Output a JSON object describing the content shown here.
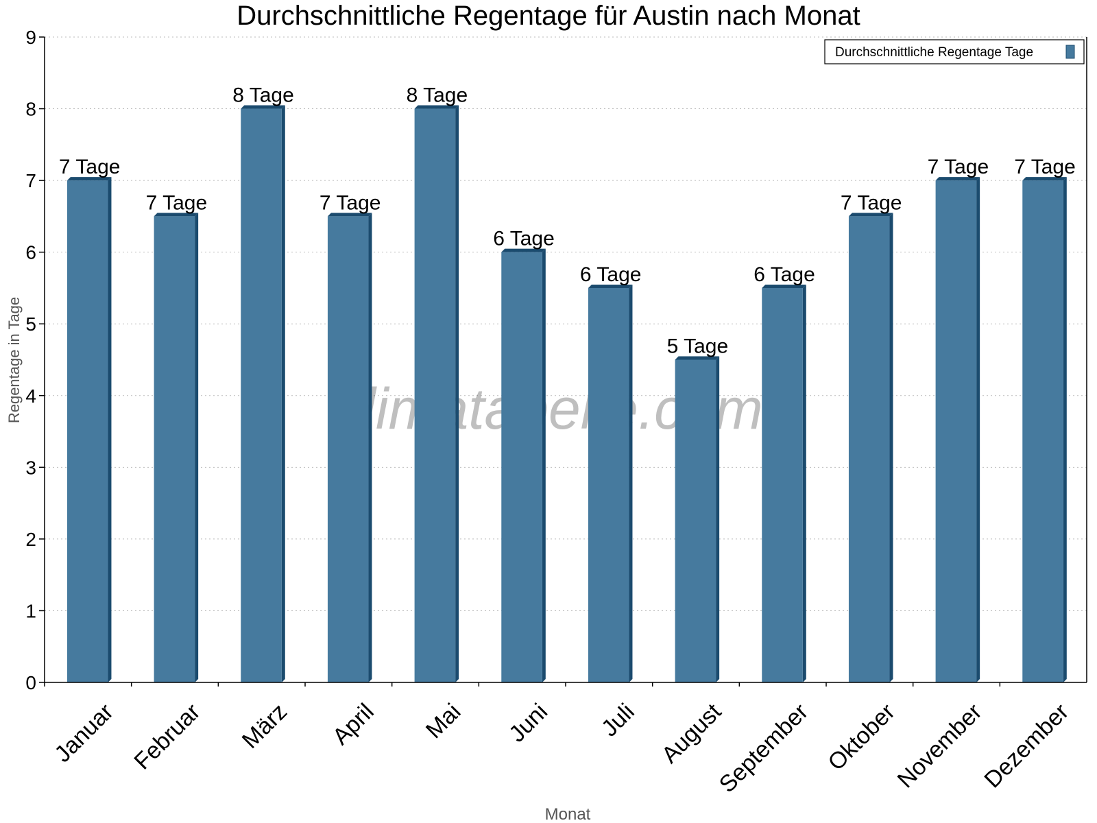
{
  "chart_data": {
    "type": "bar",
    "title": "Durchschnittliche Regentage für Austin nach Monat",
    "xlabel": "Monat",
    "ylabel": "Regentage in Tage",
    "ylim": [
      0,
      9
    ],
    "yticks": [
      0,
      1,
      2,
      3,
      4,
      5,
      6,
      7,
      8,
      9
    ],
    "grid": true,
    "legend_position": "top-right",
    "watermark": "klimatabelle.com",
    "categories": [
      "Januar",
      "Februar",
      "März",
      "April",
      "Mai",
      "Juni",
      "Juli",
      "August",
      "September",
      "Oktober",
      "November",
      "Dezember"
    ],
    "series": [
      {
        "name": "Durchschnittliche Regentage Tage",
        "color": "#467a9e",
        "side_color": "#1b4b6e",
        "values": [
          7,
          6.5,
          8,
          6.5,
          8,
          6,
          5.5,
          4.5,
          5.5,
          6.5,
          7,
          7
        ],
        "data_labels": [
          "7 Tage",
          "7 Tage",
          "8 Tage",
          "7 Tage",
          "8 Tage",
          "6 Tage",
          "6 Tage",
          "5 Tage",
          "6 Tage",
          "7 Tage",
          "7 Tage",
          "7 Tage"
        ]
      }
    ]
  }
}
